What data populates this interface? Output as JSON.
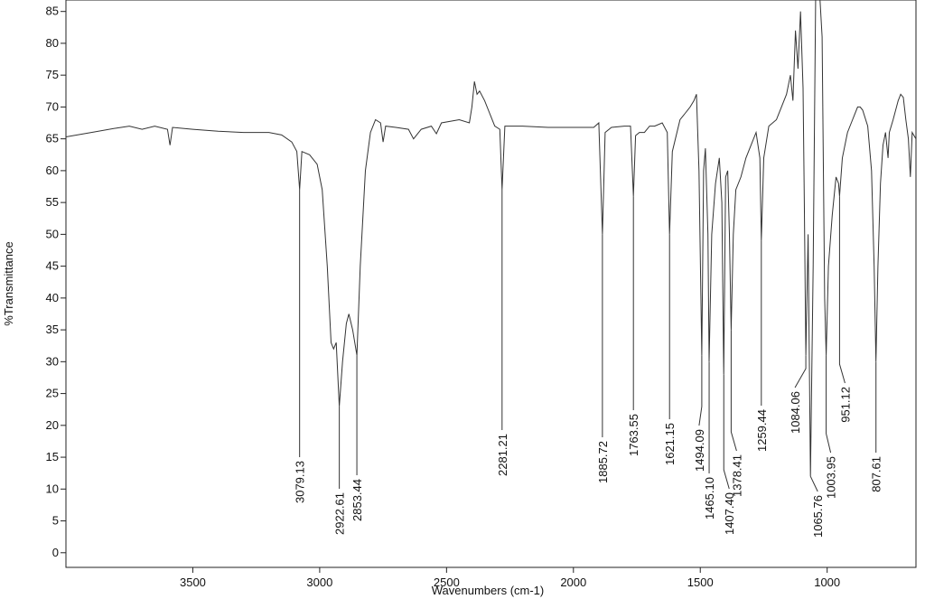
{
  "chart_data": {
    "type": "line",
    "y_label": "%Transmittance",
    "x_label": "Wavenumbers (cm-1)",
    "xlim": [
      4000,
      650
    ],
    "ylim": [
      -2.3,
      86.8
    ],
    "xticks": [
      3500,
      3000,
      2500,
      2000,
      1500,
      1000
    ],
    "yticks": [
      0,
      5,
      10,
      15,
      20,
      25,
      30,
      35,
      40,
      45,
      50,
      55,
      60,
      65,
      70,
      75,
      80,
      85
    ],
    "color": "#333333",
    "x": [
      4000,
      3900,
      3800,
      3750,
      3700,
      3650,
      3600,
      3590,
      3580,
      3500,
      3400,
      3300,
      3200,
      3150,
      3110,
      3090,
      3079.13,
      3070,
      3040,
      3010,
      2990,
      2970,
      2955,
      2945,
      2935,
      2922.61,
      2910,
      2895,
      2885,
      2870,
      2853.44,
      2840,
      2820,
      2800,
      2780,
      2760,
      2750,
      2740,
      2700,
      2650,
      2630,
      2600,
      2560,
      2540,
      2520,
      2450,
      2410,
      2400,
      2390,
      2380,
      2370,
      2350,
      2330,
      2310,
      2290,
      2281.21,
      2270,
      2200,
      2100,
      2000,
      1920,
      1900,
      1885.72,
      1875,
      1850,
      1800,
      1775,
      1763.55,
      1755,
      1740,
      1720,
      1700,
      1680,
      1650,
      1630,
      1621.15,
      1610,
      1580,
      1560,
      1540,
      1525,
      1515,
      1505,
      1494.09,
      1487,
      1480,
      1470,
      1465.1,
      1455,
      1440,
      1425,
      1415,
      1407.4,
      1400,
      1392,
      1385,
      1378.41,
      1370,
      1360,
      1340,
      1320,
      1300,
      1280,
      1265,
      1259.44,
      1250,
      1230,
      1200,
      1180,
      1160,
      1145,
      1135,
      1125,
      1115,
      1105,
      1095,
      1090,
      1084.06,
      1075,
      1065.76,
      1055,
      1045,
      1040,
      1030,
      1020,
      1010,
      1003.95,
      995,
      980,
      965,
      955,
      951.12,
      940,
      920,
      900,
      880,
      870,
      860,
      840,
      825,
      815,
      807.61,
      800,
      790,
      780,
      770,
      760,
      755,
      740,
      720,
      710,
      700,
      690,
      680,
      672,
      665,
      650
    ],
    "y": [
      65.3,
      66,
      66.7,
      67,
      66.5,
      67,
      66.5,
      64,
      66.8,
      66.5,
      66.2,
      66,
      66,
      65.6,
      64.5,
      63,
      57,
      63,
      62.5,
      61,
      57,
      45,
      33,
      32,
      33,
      23,
      30,
      36,
      37.5,
      35,
      31,
      45,
      60,
      66,
      68,
      67.5,
      64.5,
      67,
      66.8,
      66.5,
      65,
      66.5,
      67,
      65.8,
      67.5,
      68,
      67.5,
      70,
      74,
      72,
      72.5,
      71,
      69,
      67,
      66.5,
      57,
      67,
      67,
      66.8,
      66.8,
      66.8,
      67.5,
      50,
      66,
      66.8,
      67,
      67,
      56,
      65.5,
      66,
      66,
      67,
      67,
      67.5,
      66,
      50,
      63,
      68,
      69,
      70,
      71,
      72,
      60,
      31,
      60,
      63.5,
      50,
      30,
      50,
      58,
      62,
      55,
      28,
      59,
      60,
      50,
      35,
      50,
      57,
      59,
      62,
      64,
      66,
      62,
      49,
      62,
      67,
      68,
      70,
      72,
      75,
      71,
      82,
      76,
      85,
      73,
      55,
      31,
      50,
      12,
      45,
      88,
      88,
      88,
      81,
      40,
      31,
      45,
      53,
      59,
      58,
      56,
      62,
      66,
      68,
      70,
      70,
      69.5,
      67,
      60,
      45,
      30,
      45,
      58,
      64,
      66,
      62,
      66,
      68,
      71,
      72,
      71.5,
      68,
      65,
      59,
      66,
      65
    ],
    "annotations": [
      {
        "x": 3079.13,
        "y": 57,
        "label": "3079.13"
      },
      {
        "x": 2922.61,
        "y": 23,
        "label": "2922.61"
      },
      {
        "x": 2853.44,
        "y": 31,
        "label": "2853.44"
      },
      {
        "x": 2281.21,
        "y": 57,
        "label": "2281.21"
      },
      {
        "x": 1885.72,
        "y": 50,
        "label": "1885.72"
      },
      {
        "x": 1763.55,
        "y": 56,
        "label": "1763.55"
      },
      {
        "x": 1621.15,
        "y": 50,
        "label": "1621.15"
      },
      {
        "x": 1494.09,
        "y": 31,
        "label": "1494.09"
      },
      {
        "x": 1465.1,
        "y": 30,
        "label": "1465.10"
      },
      {
        "x": 1407.4,
        "y": 28,
        "label": "1407.40"
      },
      {
        "x": 1378.41,
        "y": 35,
        "label": "1378.41"
      },
      {
        "x": 1259.44,
        "y": 49,
        "label": "1259.44"
      },
      {
        "x": 1084.06,
        "y": 31,
        "label": "1084.06"
      },
      {
        "x": 1065.76,
        "y": 12,
        "label": "1065.76"
      },
      {
        "x": 1003.95,
        "y": 31,
        "label": "1003.95"
      },
      {
        "x": 951.12,
        "y": 56,
        "label": "951.12"
      },
      {
        "x": 807.61,
        "y": 30,
        "label": "807.61"
      }
    ]
  }
}
